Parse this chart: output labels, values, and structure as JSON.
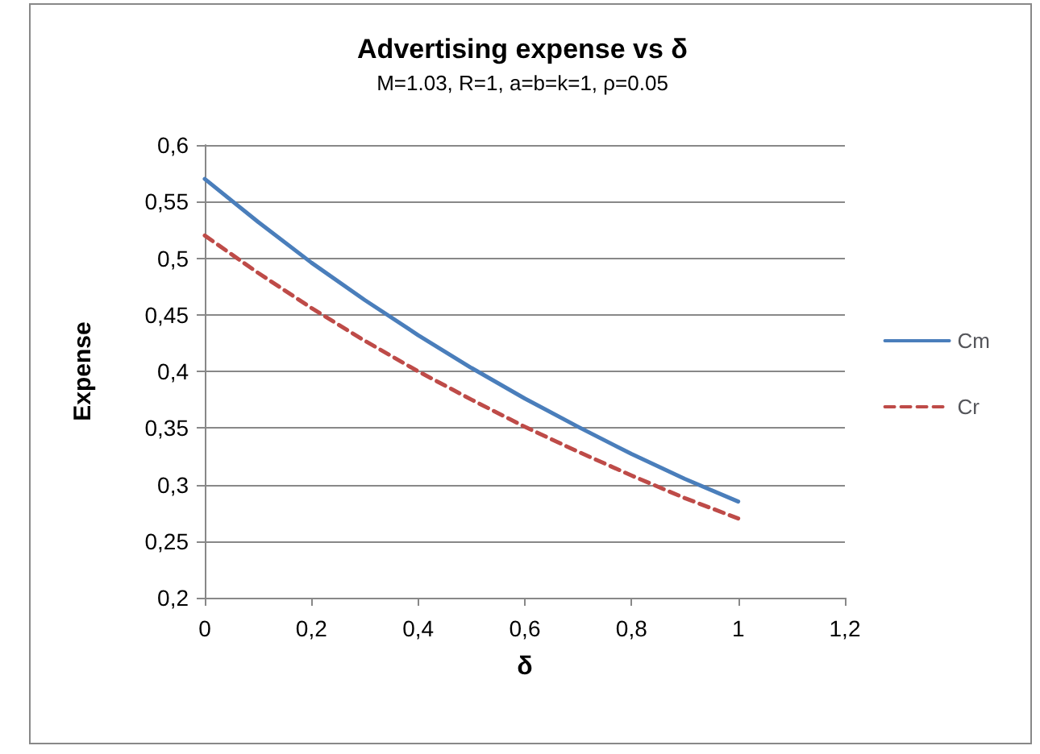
{
  "chart_data": {
    "type": "line",
    "title": "Advertising expense vs δ",
    "subtitle": "M=1.03, R=1, a=b=k=1, ρ=0.05",
    "xlabel": "δ",
    "ylabel": "Expense",
    "x": [
      0,
      0.1,
      0.2,
      0.3,
      0.4,
      0.5,
      0.6,
      0.7,
      0.8,
      0.9,
      1
    ],
    "series": [
      {
        "name": "Cm",
        "color": "#4a7ebb",
        "line_style": "solid",
        "values": [
          0.57,
          0.532,
          0.496,
          0.463,
          0.432,
          0.403,
          0.376,
          0.351,
          0.327,
          0.305,
          0.285
        ]
      },
      {
        "name": "Cr",
        "color": "#be4b48",
        "line_style": "dashed",
        "values": [
          0.52,
          0.487,
          0.456,
          0.427,
          0.4,
          0.375,
          0.351,
          0.329,
          0.308,
          0.288,
          0.27
        ]
      }
    ],
    "xlim": [
      0,
      1.2
    ],
    "xticks": [
      0,
      {
        "value": 0.2,
        "label": "0,2"
      },
      {
        "value": 0.4,
        "label": "0,4"
      },
      {
        "value": 0.6,
        "label": "0,6"
      },
      {
        "value": 0.8,
        "label": "0,8"
      },
      1,
      {
        "value": 1.2,
        "label": "1,2"
      }
    ],
    "ylim": [
      0.2,
      0.6
    ],
    "yticks": [
      {
        "value": 0.2,
        "label": "0,2"
      },
      {
        "value": 0.25,
        "label": "0,25"
      },
      {
        "value": 0.3,
        "label": "0,3"
      },
      {
        "value": 0.35,
        "label": "0,35"
      },
      {
        "value": 0.4,
        "label": "0,4"
      },
      {
        "value": 0.45,
        "label": "0,45"
      },
      {
        "value": 0.5,
        "label": "0,5"
      },
      {
        "value": 0.55,
        "label": "0,55"
      },
      {
        "value": 0.6,
        "label": "0,6"
      }
    ],
    "grid": "y",
    "legend": "right",
    "marker": "none"
  }
}
